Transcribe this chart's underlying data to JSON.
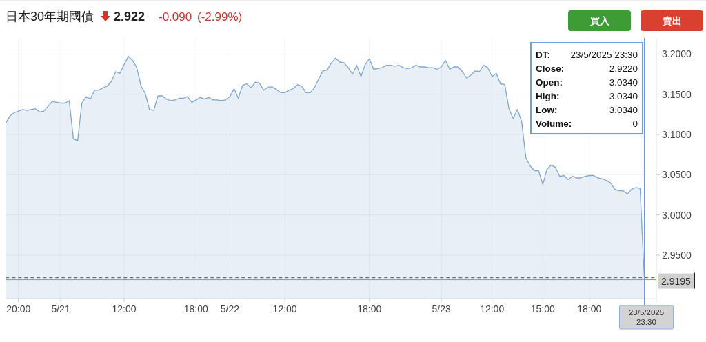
{
  "chart_data": {
    "type": "area",
    "title": "日本30年期國債",
    "annotations": [
      "2.922",
      "-0.090",
      "(-2.99%)",
      "買入",
      "賣出",
      "DT:",
      "23/5/2025 23:30",
      "Close:",
      "2.9220",
      "Open:",
      "3.0340",
      "High:",
      "3.0340",
      "Low:",
      "3.0340",
      "Volume:",
      "0"
    ],
    "categories": [
      null,
      null,
      null,
      "20:00",
      null,
      null,
      null,
      null,
      null,
      null,
      null,
      null,
      null,
      "5/21",
      null,
      null,
      null,
      null,
      null,
      null,
      null,
      null,
      null,
      null,
      null,
      null,
      null,
      null,
      "12:00",
      null,
      null,
      null,
      null,
      null,
      null,
      null,
      null,
      null,
      null,
      null,
      null,
      null,
      null,
      null,
      null,
      "18:00",
      null,
      null,
      null,
      null,
      null,
      null,
      null,
      "5/22",
      null,
      null,
      null,
      null,
      null,
      null,
      null,
      null,
      null,
      null,
      null,
      null,
      "12:00",
      null,
      null,
      null,
      null,
      null,
      null,
      null,
      null,
      null,
      null,
      null,
      null,
      null,
      null,
      null,
      null,
      null,
      null,
      null,
      "18:00",
      null,
      null,
      null,
      null,
      null,
      null,
      null,
      null,
      null,
      null,
      null,
      null,
      null,
      null,
      null,
      null,
      "5/23",
      null,
      null,
      null,
      null,
      null,
      null,
      null,
      null,
      null,
      null,
      null,
      "12:00",
      null,
      null,
      null,
      null,
      null,
      null,
      null,
      null,
      null,
      null,
      null,
      "15:00",
      null,
      null,
      null,
      null,
      null,
      null,
      null,
      null,
      null,
      null,
      "18:00",
      null,
      null,
      null,
      null,
      null,
      null,
      null,
      null,
      null,
      null,
      null,
      null,
      "23/5/2025 23:30"
    ],
    "series": [
      {
        "color": "#7ea6d3",
        "values": [
          3.114,
          3.123,
          3.127,
          3.129,
          3.131,
          3.13,
          3.131,
          3.132,
          3.128,
          3.129,
          3.135,
          3.141,
          3.14,
          3.139,
          3.139,
          3.142,
          3.095,
          3.092,
          3.139,
          3.147,
          3.144,
          3.155,
          3.155,
          3.158,
          3.16,
          3.166,
          3.178,
          3.176,
          3.187,
          3.197,
          3.192,
          3.183,
          3.16,
          3.151,
          3.131,
          3.13,
          3.148,
          3.148,
          3.144,
          3.142,
          3.143,
          3.145,
          3.145,
          3.147,
          3.14,
          3.143,
          3.146,
          3.144,
          3.146,
          3.143,
          3.143,
          3.142,
          3.143,
          3.147,
          3.157,
          3.145,
          3.161,
          3.163,
          3.158,
          3.165,
          3.164,
          3.155,
          3.159,
          3.159,
          3.156,
          3.152,
          3.152,
          3.155,
          3.157,
          3.162,
          3.16,
          3.152,
          3.152,
          3.158,
          3.169,
          3.179,
          3.18,
          3.189,
          3.195,
          3.19,
          3.189,
          3.183,
          3.175,
          3.186,
          3.172,
          3.187,
          3.194,
          3.181,
          3.182,
          3.183,
          3.186,
          3.186,
          3.185,
          3.186,
          3.183,
          3.182,
          3.183,
          3.186,
          3.184,
          3.184,
          3.183,
          3.183,
          3.181,
          3.184,
          3.192,
          3.181,
          3.184,
          3.184,
          3.178,
          3.17,
          3.174,
          3.179,
          3.178,
          3.186,
          3.183,
          3.172,
          3.176,
          3.163,
          3.162,
          3.132,
          3.12,
          3.131,
          3.116,
          3.071,
          3.061,
          3.055,
          3.055,
          3.038,
          3.057,
          3.062,
          3.059,
          3.048,
          3.049,
          3.044,
          3.048,
          3.046,
          3.046,
          3.048,
          3.049,
          3.049,
          3.046,
          3.045,
          3.043,
          3.04,
          3.032,
          3.03,
          3.03,
          3.026,
          3.032,
          3.034,
          3.033,
          2.922
        ]
      }
    ],
    "ylim": [
      2.896,
      3.22
    ],
    "yticks": [
      {
        "value": 2.95,
        "label": "2.9500"
      },
      {
        "value": 3.0,
        "label": "3.0000"
      },
      {
        "value": 3.05,
        "label": "3.0500"
      },
      {
        "value": 3.1,
        "label": "3.1000"
      },
      {
        "value": 3.15,
        "label": "3.1500"
      },
      {
        "value": 3.2,
        "label": "3.2000"
      }
    ],
    "grid": true,
    "ref_lines": [
      {
        "axis": "y",
        "value": 2.922,
        "color": "#555555",
        "line_style": "dashed"
      },
      {
        "axis": "y",
        "value": 2.9195,
        "label": "2.9195",
        "color": "#6f9bd1",
        "line_style": "solid"
      },
      {
        "axis": "x",
        "value": "23/5/2025 23:30",
        "color": "#6f9bd1",
        "line_style": "solid"
      }
    ]
  }
}
